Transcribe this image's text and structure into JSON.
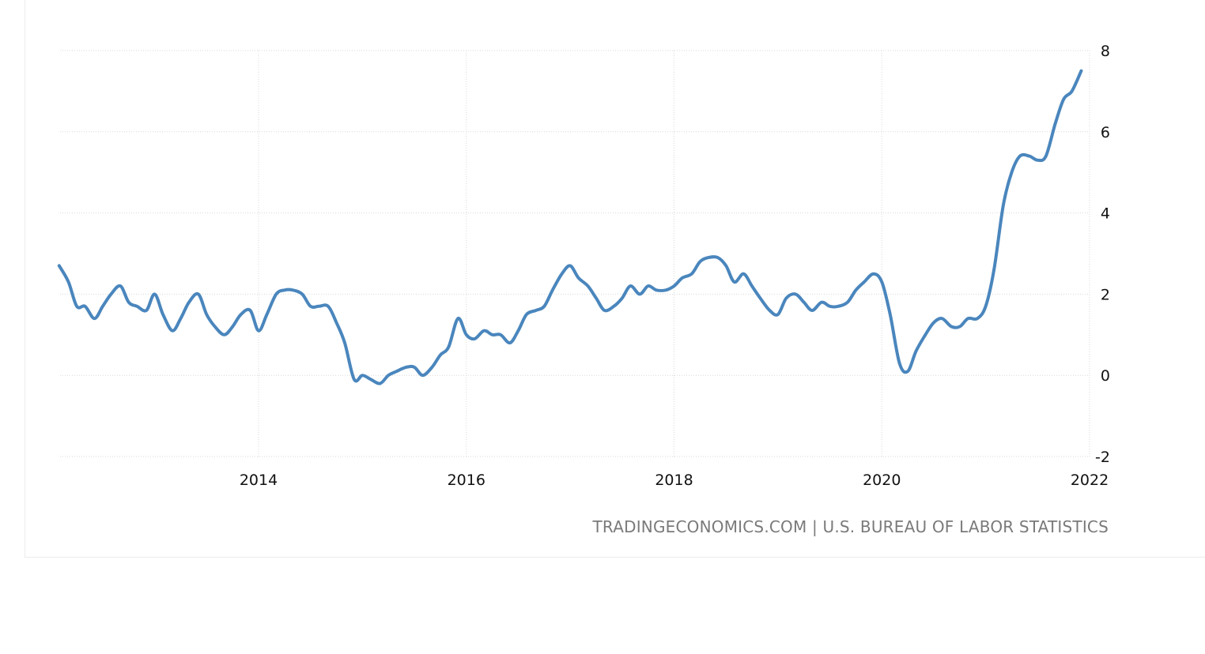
{
  "source_note": "TRADINGECONOMICS.COM | U.S. BUREAU OF LABOR STATISTICS",
  "colors": {
    "line": "#4a86bd",
    "grid": "#d9d9d9",
    "source_text": "#7a7a7a"
  },
  "chart_data": {
    "type": "line",
    "title": "",
    "xlabel": "",
    "ylabel": "",
    "x_tick_labels": [
      "2014",
      "2016",
      "2018",
      "2020",
      "2022"
    ],
    "x_ticks": [
      2014,
      2016,
      2018,
      2020,
      2022
    ],
    "y_tick_labels": [
      "8",
      "6",
      "4",
      "2",
      "0",
      "-2"
    ],
    "y_ticks": [
      8,
      6,
      4,
      2,
      0,
      -2
    ],
    "xlim": [
      2012.08,
      2022.0
    ],
    "ylim": [
      -2,
      8
    ],
    "grid": true,
    "y_axis_side": "right",
    "series": [
      {
        "values": [
          [
            2012.08,
            2.7
          ],
          [
            2012.17,
            2.3
          ],
          [
            2012.25,
            1.7
          ],
          [
            2012.33,
            1.7
          ],
          [
            2012.42,
            1.4
          ],
          [
            2012.5,
            1.7
          ],
          [
            2012.58,
            2.0
          ],
          [
            2012.67,
            2.2
          ],
          [
            2012.75,
            1.8
          ],
          [
            2012.83,
            1.7
          ],
          [
            2012.92,
            1.6
          ],
          [
            2013.0,
            2.0
          ],
          [
            2013.08,
            1.5
          ],
          [
            2013.17,
            1.1
          ],
          [
            2013.25,
            1.4
          ],
          [
            2013.33,
            1.8
          ],
          [
            2013.42,
            2.0
          ],
          [
            2013.5,
            1.5
          ],
          [
            2013.58,
            1.2
          ],
          [
            2013.67,
            1.0
          ],
          [
            2013.75,
            1.2
          ],
          [
            2013.83,
            1.5
          ],
          [
            2013.92,
            1.6
          ],
          [
            2014.0,
            1.1
          ],
          [
            2014.08,
            1.5
          ],
          [
            2014.17,
            2.0
          ],
          [
            2014.25,
            2.1
          ],
          [
            2014.33,
            2.1
          ],
          [
            2014.42,
            2.0
          ],
          [
            2014.5,
            1.7
          ],
          [
            2014.58,
            1.7
          ],
          [
            2014.67,
            1.7
          ],
          [
            2014.75,
            1.3
          ],
          [
            2014.83,
            0.8
          ],
          [
            2014.92,
            -0.1
          ],
          [
            2015.0,
            0.0
          ],
          [
            2015.08,
            -0.1
          ],
          [
            2015.17,
            -0.2
          ],
          [
            2015.25,
            0.0
          ],
          [
            2015.33,
            0.1
          ],
          [
            2015.42,
            0.2
          ],
          [
            2015.5,
            0.2
          ],
          [
            2015.58,
            0.0
          ],
          [
            2015.67,
            0.2
          ],
          [
            2015.75,
            0.5
          ],
          [
            2015.83,
            0.7
          ],
          [
            2015.92,
            1.4
          ],
          [
            2016.0,
            1.0
          ],
          [
            2016.08,
            0.9
          ],
          [
            2016.17,
            1.1
          ],
          [
            2016.25,
            1.0
          ],
          [
            2016.33,
            1.0
          ],
          [
            2016.42,
            0.8
          ],
          [
            2016.5,
            1.1
          ],
          [
            2016.58,
            1.5
          ],
          [
            2016.67,
            1.6
          ],
          [
            2016.75,
            1.7
          ],
          [
            2016.83,
            2.1
          ],
          [
            2016.92,
            2.5
          ],
          [
            2017.0,
            2.7
          ],
          [
            2017.08,
            2.4
          ],
          [
            2017.17,
            2.2
          ],
          [
            2017.25,
            1.9
          ],
          [
            2017.33,
            1.6
          ],
          [
            2017.42,
            1.7
          ],
          [
            2017.5,
            1.9
          ],
          [
            2017.58,
            2.2
          ],
          [
            2017.67,
            2.0
          ],
          [
            2017.75,
            2.2
          ],
          [
            2017.83,
            2.1
          ],
          [
            2017.92,
            2.1
          ],
          [
            2018.0,
            2.2
          ],
          [
            2018.08,
            2.4
          ],
          [
            2018.17,
            2.5
          ],
          [
            2018.25,
            2.8
          ],
          [
            2018.33,
            2.9
          ],
          [
            2018.42,
            2.9
          ],
          [
            2018.5,
            2.7
          ],
          [
            2018.58,
            2.3
          ],
          [
            2018.67,
            2.5
          ],
          [
            2018.75,
            2.2
          ],
          [
            2018.83,
            1.9
          ],
          [
            2018.92,
            1.6
          ],
          [
            2019.0,
            1.5
          ],
          [
            2019.08,
            1.9
          ],
          [
            2019.17,
            2.0
          ],
          [
            2019.25,
            1.8
          ],
          [
            2019.33,
            1.6
          ],
          [
            2019.42,
            1.8
          ],
          [
            2019.5,
            1.7
          ],
          [
            2019.58,
            1.7
          ],
          [
            2019.67,
            1.8
          ],
          [
            2019.75,
            2.1
          ],
          [
            2019.83,
            2.3
          ],
          [
            2019.92,
            2.5
          ],
          [
            2020.0,
            2.3
          ],
          [
            2020.08,
            1.5
          ],
          [
            2020.17,
            0.3
          ],
          [
            2020.25,
            0.1
          ],
          [
            2020.33,
            0.6
          ],
          [
            2020.42,
            1.0
          ],
          [
            2020.5,
            1.3
          ],
          [
            2020.58,
            1.4
          ],
          [
            2020.67,
            1.2
          ],
          [
            2020.75,
            1.2
          ],
          [
            2020.83,
            1.4
          ],
          [
            2020.92,
            1.4
          ],
          [
            2021.0,
            1.7
          ],
          [
            2021.08,
            2.6
          ],
          [
            2021.17,
            4.2
          ],
          [
            2021.25,
            5.0
          ],
          [
            2021.33,
            5.4
          ],
          [
            2021.42,
            5.4
          ],
          [
            2021.5,
            5.3
          ],
          [
            2021.58,
            5.4
          ],
          [
            2021.67,
            6.2
          ],
          [
            2021.75,
            6.8
          ],
          [
            2021.83,
            7.0
          ],
          [
            2021.92,
            7.5
          ]
        ]
      }
    ]
  }
}
